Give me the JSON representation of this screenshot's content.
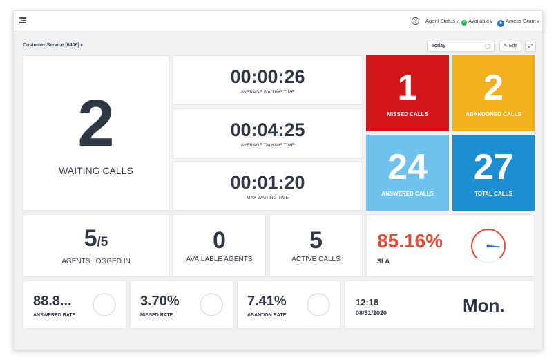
{
  "topbar": {
    "help_icon": "question-icon",
    "agent_status": "Agent Status",
    "availability": "Available",
    "user_name": "Amelia Grant"
  },
  "toolbar": {
    "queue": "Customer Service [6406]",
    "date_range": "Today",
    "edit_label": "Edit",
    "expand_icon": "expand-icon"
  },
  "waiting": {
    "value": "2",
    "label": "WAITING CALLS"
  },
  "times": [
    {
      "value": "00:00:26",
      "label": "AVERAGE WAITING TIME"
    },
    {
      "value": "00:04:25",
      "label": "AVERAGE TALKING TIME"
    },
    {
      "value": "00:01:20",
      "label": "MAX WAITING TIME"
    }
  ],
  "tiles": [
    {
      "value": "1",
      "label": "MISSED CALLS",
      "color": "#d2151b"
    },
    {
      "value": "2",
      "label": "ABANDONED CALLS",
      "color": "#f2b01e"
    },
    {
      "value": "24",
      "label": "ANSWERED CALLS",
      "color": "#6ec3ee"
    },
    {
      "value": "27",
      "label": "TOTAL CALLS",
      "color": "#1c8fd3"
    }
  ],
  "agents": {
    "logged_in": "5",
    "logged_total": "/5",
    "logged_label": "AGENTS LOGGED IN",
    "available": "0",
    "available_label": "AVAILABLE AGENTS",
    "active": "5",
    "active_label": "ACTIVE CALLS"
  },
  "sla": {
    "value": "85.16%",
    "label": "SLA",
    "color": "#e04b36",
    "gauge_fraction": 0.8516
  },
  "rates": [
    {
      "value": "88.8...",
      "label": "ANSWERED RATE"
    },
    {
      "value": "3.70%",
      "label": "MISSED RATE"
    },
    {
      "value": "7.41%",
      "label": "ABANDON RATE"
    }
  ],
  "clock": {
    "time": "12:18",
    "date": "08/31/2020",
    "day": "Mon."
  }
}
